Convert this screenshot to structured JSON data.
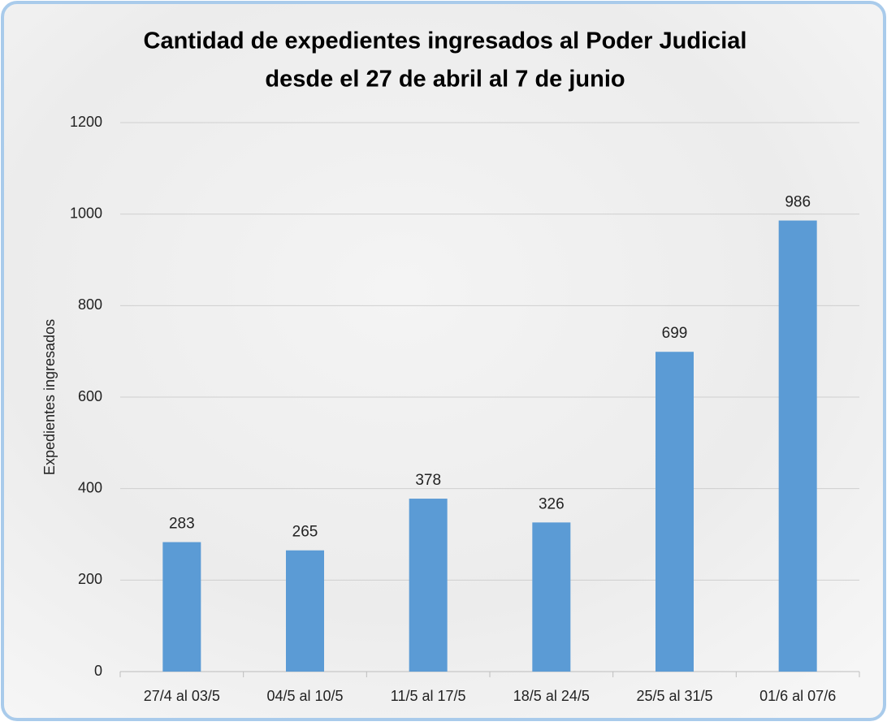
{
  "chart_data": {
    "type": "bar",
    "title": [
      "Cantidad de expedientes ingresados al Poder Judicial",
      "desde el 27 de abril al 7 de junio"
    ],
    "y_label": "Expedientes ingresados",
    "categories": [
      "27/4 al 03/5",
      "04/5 al 10/5",
      "11/5 al 17/5",
      "18/5 al 24/5",
      "25/5 al 31/5",
      "01/6 al 07/6"
    ],
    "values": [
      283,
      265,
      378,
      326,
      699,
      986
    ],
    "color": "#5b9bd5",
    "ylim": [
      0,
      1200
    ],
    "yticks": [
      0,
      200,
      400,
      600,
      800,
      1000,
      1200
    ],
    "grid": true
  }
}
